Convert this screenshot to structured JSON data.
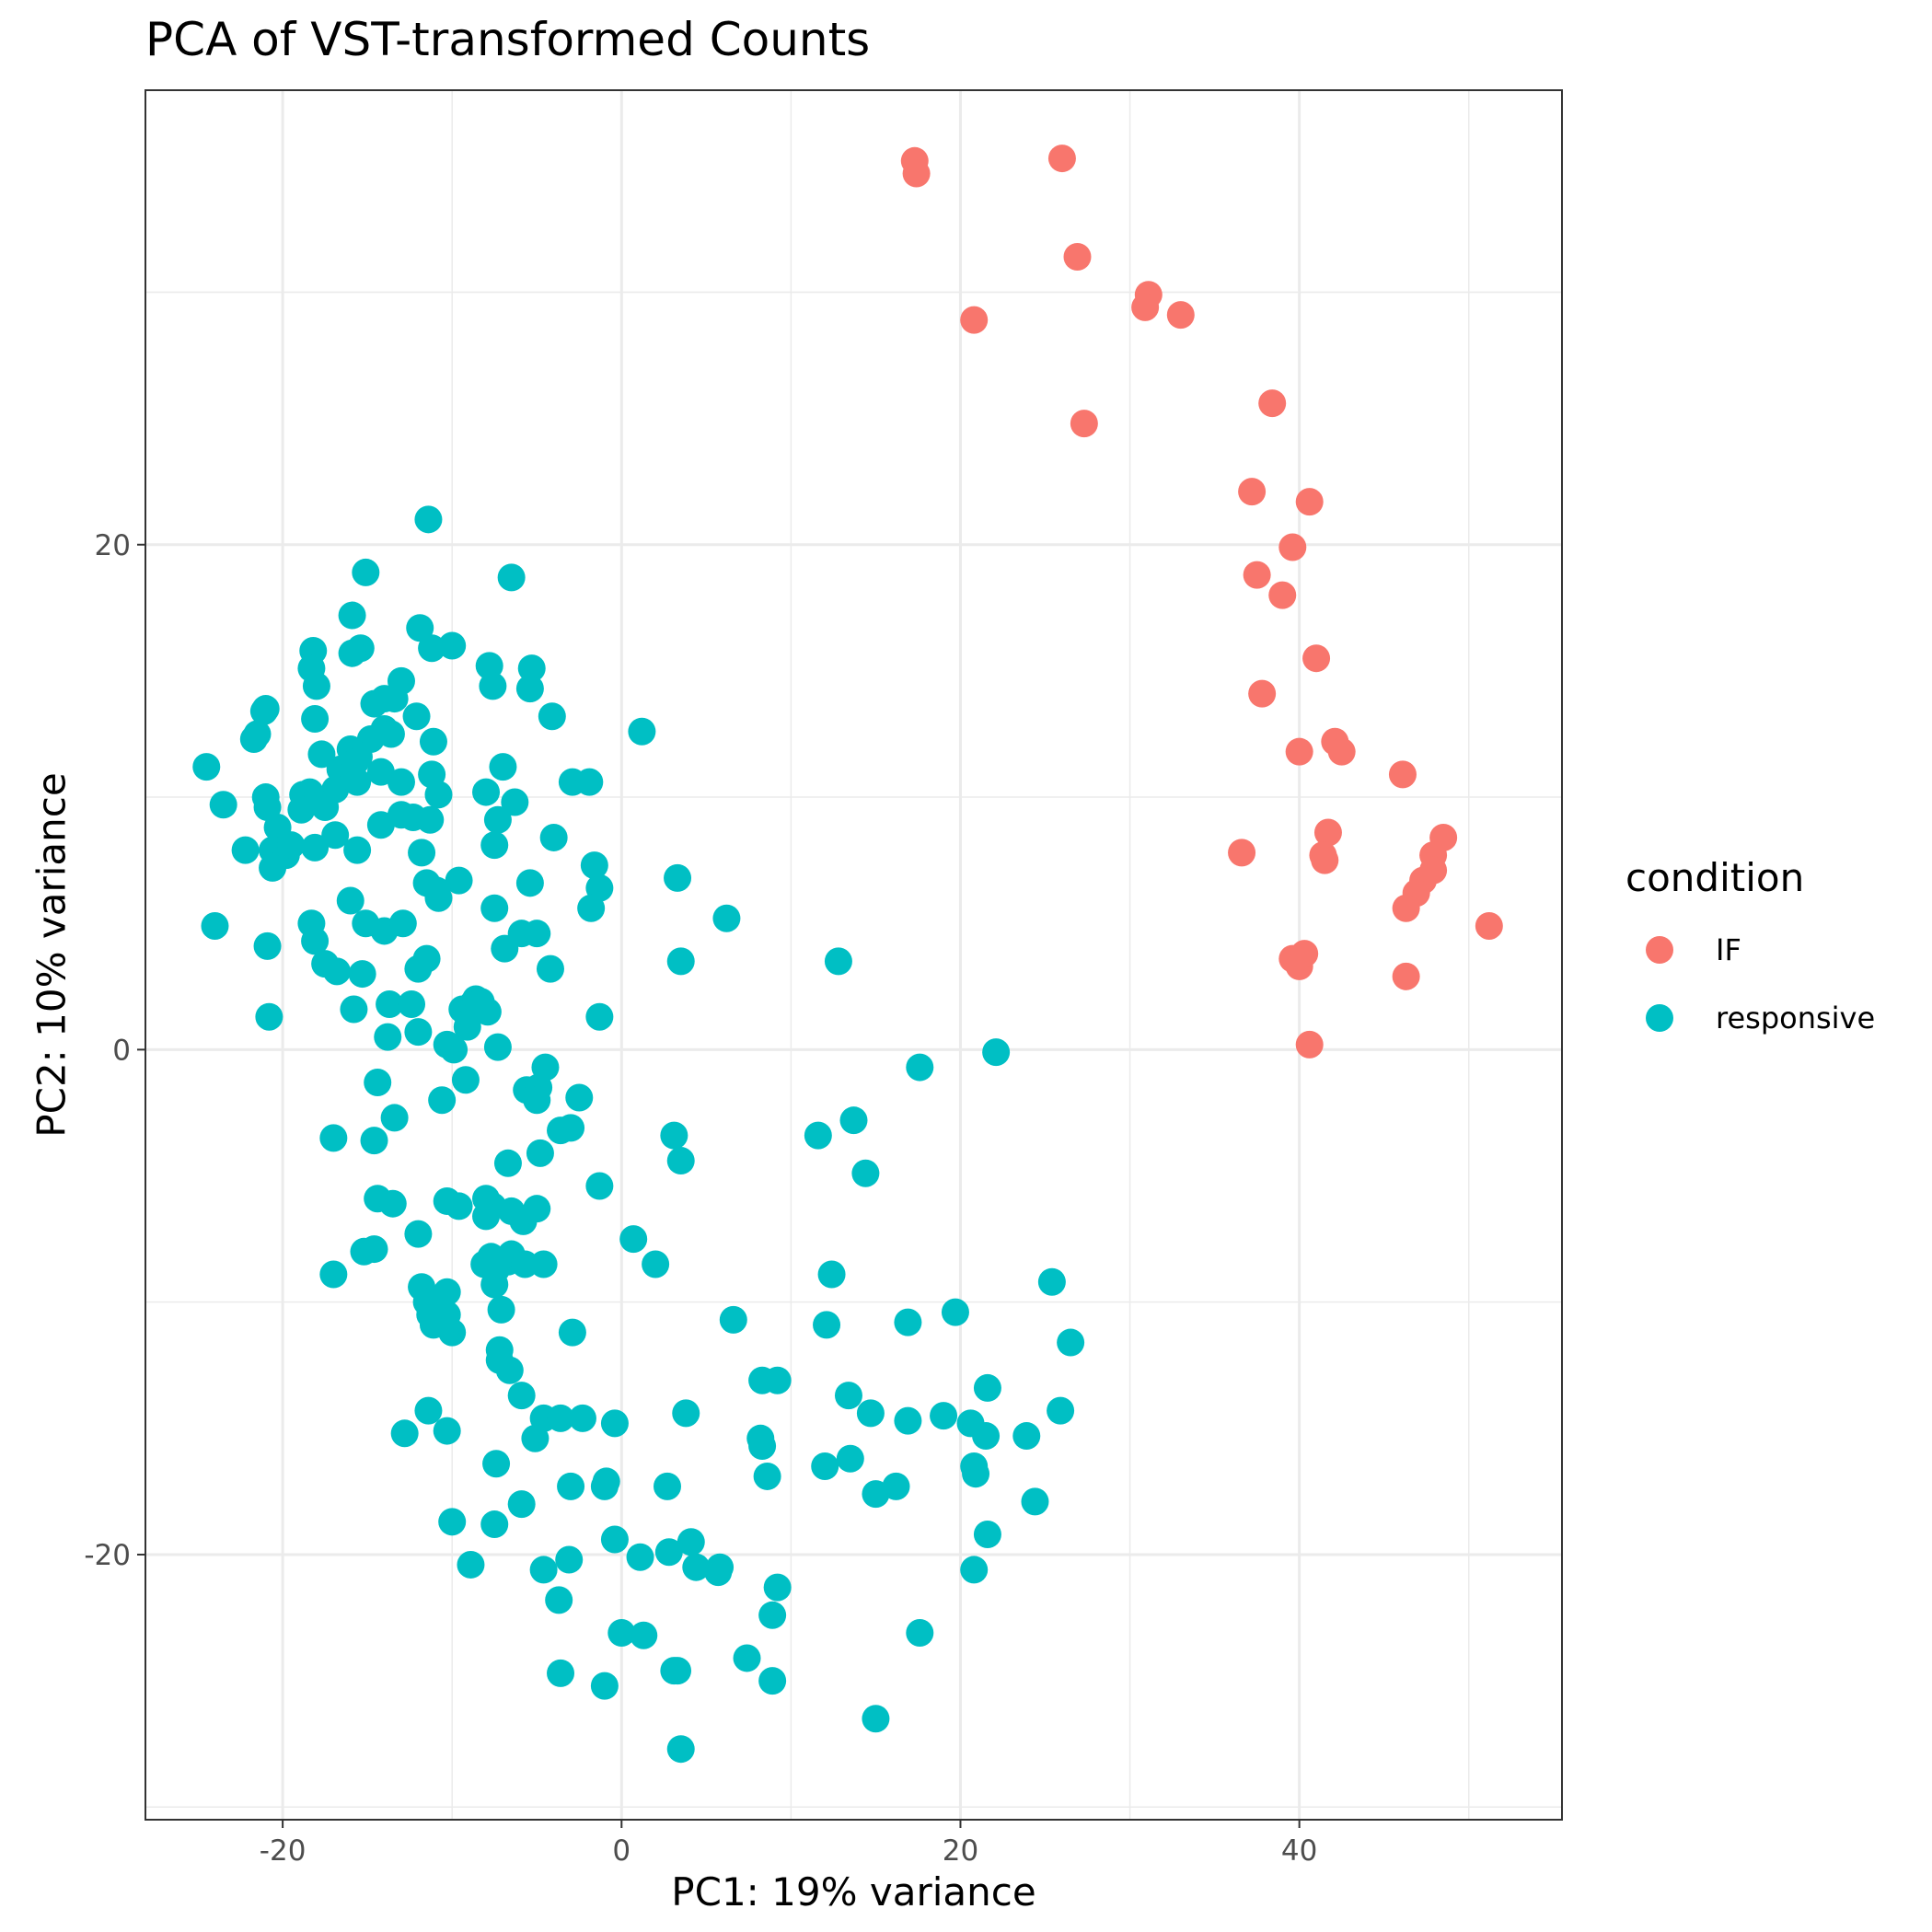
{
  "chart_data": {
    "type": "scatter",
    "title": "PCA of VST-transformed Counts",
    "xlabel": "PC1: 19% variance",
    "ylabel": "PC2: 10% variance",
    "xlim": [
      -28.1,
      55.5
    ],
    "ylim": [
      -30.5,
      38.0
    ],
    "xticks": [
      -20,
      0,
      20,
      40
    ],
    "yticks": [
      -20,
      0,
      20
    ],
    "xtick_labels": [
      "-20",
      "0",
      "20",
      "40"
    ],
    "ytick_labels": [
      "-20",
      "0",
      "20"
    ],
    "grid": true,
    "legend": {
      "title": "condition",
      "position": "right"
    },
    "series": [
      {
        "name": "IF",
        "color": "#F8766D",
        "points": [
          [
            17.3,
            35.2
          ],
          [
            17.4,
            34.7
          ],
          [
            26.0,
            35.3
          ],
          [
            26.9,
            31.4
          ],
          [
            20.8,
            28.9
          ],
          [
            31.1,
            29.9
          ],
          [
            30.9,
            29.4
          ],
          [
            33.0,
            29.1
          ],
          [
            38.4,
            25.6
          ],
          [
            27.3,
            24.8
          ],
          [
            37.2,
            22.1
          ],
          [
            40.6,
            21.7
          ],
          [
            39.6,
            19.9
          ],
          [
            37.5,
            18.8
          ],
          [
            39.0,
            18.0
          ],
          [
            41.0,
            15.5
          ],
          [
            37.8,
            14.1
          ],
          [
            42.1,
            12.2
          ],
          [
            40.0,
            11.8
          ],
          [
            42.5,
            11.8
          ],
          [
            46.1,
            10.9
          ],
          [
            41.7,
            8.6
          ],
          [
            36.6,
            7.8
          ],
          [
            41.4,
            7.7
          ],
          [
            41.5,
            7.5
          ],
          [
            48.5,
            8.4
          ],
          [
            47.9,
            7.7
          ],
          [
            47.9,
            7.1
          ],
          [
            47.3,
            6.7
          ],
          [
            46.9,
            6.2
          ],
          [
            46.3,
            5.6
          ],
          [
            51.2,
            4.9
          ],
          [
            39.6,
            3.6
          ],
          [
            40.0,
            3.3
          ],
          [
            40.3,
            3.8
          ],
          [
            46.3,
            2.9
          ],
          [
            40.6,
            0.2
          ]
        ]
      },
      {
        "name": "responsive",
        "color": "#00BFC4",
        "points": [
          [
            -11.4,
            21.0
          ],
          [
            -15.1,
            18.9
          ],
          [
            -6.5,
            18.7
          ],
          [
            -15.9,
            17.2
          ],
          [
            -11.9,
            16.7
          ],
          [
            -18.2,
            15.8
          ],
          [
            -15.4,
            15.9
          ],
          [
            -15.9,
            15.7
          ],
          [
            -11.2,
            15.9
          ],
          [
            -10.0,
            16.0
          ],
          [
            -18.3,
            15.1
          ],
          [
            -7.8,
            15.2
          ],
          [
            -5.3,
            15.1
          ],
          [
            -18.0,
            14.4
          ],
          [
            -7.6,
            14.4
          ],
          [
            -5.4,
            14.3
          ],
          [
            -13.0,
            14.6
          ],
          [
            -14.0,
            13.9
          ],
          [
            -13.4,
            13.9
          ],
          [
            -14.6,
            13.7
          ],
          [
            -21.1,
            13.4
          ],
          [
            -21.0,
            13.5
          ],
          [
            -18.1,
            13.1
          ],
          [
            -12.1,
            13.2
          ],
          [
            -4.1,
            13.2
          ],
          [
            1.2,
            12.6
          ],
          [
            -21.5,
            12.5
          ],
          [
            -21.7,
            12.3
          ],
          [
            -14.0,
            12.7
          ],
          [
            -14.8,
            12.3
          ],
          [
            -13.6,
            12.5
          ],
          [
            -11.1,
            12.2
          ],
          [
            -17.7,
            11.7
          ],
          [
            -15.5,
            11.6
          ],
          [
            -16.0,
            11.9
          ],
          [
            -16.6,
            11.1
          ],
          [
            -15.7,
            11.4
          ],
          [
            -24.5,
            11.2
          ],
          [
            -14.2,
            11.0
          ],
          [
            -11.2,
            10.9
          ],
          [
            -7.0,
            11.2
          ],
          [
            -16.9,
            10.3
          ],
          [
            -15.6,
            10.6
          ],
          [
            -13.0,
            10.6
          ],
          [
            -21.0,
            10.0
          ],
          [
            -18.8,
            10.1
          ],
          [
            -18.4,
            10.2
          ],
          [
            -10.8,
            10.1
          ],
          [
            -8.0,
            10.2
          ],
          [
            -2.9,
            10.6
          ],
          [
            -1.9,
            10.6
          ],
          [
            -23.5,
            9.7
          ],
          [
            -18.9,
            9.5
          ],
          [
            -17.5,
            9.6
          ],
          [
            -20.9,
            9.6
          ],
          [
            -13.0,
            9.3
          ],
          [
            -12.3,
            9.2
          ],
          [
            -11.3,
            9.1
          ],
          [
            -7.3,
            9.1
          ],
          [
            -6.3,
            9.8
          ],
          [
            -20.3,
            8.8
          ],
          [
            -16.9,
            8.5
          ],
          [
            -14.2,
            8.9
          ],
          [
            -4.0,
            8.4
          ],
          [
            -22.2,
            7.9
          ],
          [
            -20.6,
            7.9
          ],
          [
            -19.8,
            7.7
          ],
          [
            -19.5,
            8.1
          ],
          [
            -18.1,
            8.0
          ],
          [
            -15.6,
            7.9
          ],
          [
            -11.8,
            7.8
          ],
          [
            -7.5,
            8.1
          ],
          [
            -20.6,
            7.2
          ],
          [
            -1.6,
            7.3
          ],
          [
            -11.5,
            6.6
          ],
          [
            -9.6,
            6.7
          ],
          [
            -10.9,
            6.3
          ],
          [
            -10.8,
            6.0
          ],
          [
            -5.4,
            6.6
          ],
          [
            -1.3,
            6.4
          ],
          [
            3.3,
            6.8
          ],
          [
            -16.0,
            5.9
          ],
          [
            -7.5,
            5.6
          ],
          [
            -1.8,
            5.6
          ],
          [
            6.2,
            5.2
          ],
          [
            -24.0,
            4.9
          ],
          [
            -18.3,
            5.0
          ],
          [
            -15.1,
            5.0
          ],
          [
            -18.1,
            4.3
          ],
          [
            -14.0,
            4.7
          ],
          [
            -12.9,
            5.0
          ],
          [
            -5.9,
            4.6
          ],
          [
            -5.0,
            4.6
          ],
          [
            -6.9,
            4.0
          ],
          [
            -20.9,
            4.1
          ],
          [
            -17.5,
            3.4
          ],
          [
            -16.8,
            3.1
          ],
          [
            -15.3,
            3.0
          ],
          [
            -11.5,
            3.6
          ],
          [
            -12.0,
            3.2
          ],
          [
            -4.2,
            3.2
          ],
          [
            3.5,
            3.5
          ],
          [
            12.8,
            3.5
          ],
          [
            -13.7,
            1.8
          ],
          [
            -12.4,
            1.8
          ],
          [
            -9.4,
            1.6
          ],
          [
            -8.8,
            1.8
          ],
          [
            -8.6,
            2.0
          ],
          [
            -8.3,
            1.9
          ],
          [
            -7.9,
            1.5
          ],
          [
            -9.1,
            0.9
          ],
          [
            -15.8,
            1.6
          ],
          [
            -20.8,
            1.3
          ],
          [
            -1.3,
            1.3
          ],
          [
            -13.8,
            0.5
          ],
          [
            -12.0,
            0.7
          ],
          [
            -10.3,
            0.2
          ],
          [
            -9.9,
            0.0
          ],
          [
            -7.3,
            0.1
          ],
          [
            -4.5,
            -0.7
          ],
          [
            17.6,
            -0.7
          ],
          [
            22.1,
            -0.1
          ],
          [
            -14.4,
            -1.3
          ],
          [
            -9.2,
            -1.2
          ],
          [
            -5.6,
            -1.6
          ],
          [
            -4.9,
            -1.5
          ],
          [
            -5.0,
            -2.0
          ],
          [
            -10.6,
            -2.0
          ],
          [
            -2.5,
            -1.9
          ],
          [
            -13.4,
            -2.7
          ],
          [
            -3.6,
            -3.2
          ],
          [
            -3.0,
            -3.1
          ],
          [
            13.7,
            -2.8
          ],
          [
            -17.0,
            -3.5
          ],
          [
            -14.6,
            -3.6
          ],
          [
            3.1,
            -3.4
          ],
          [
            11.6,
            -3.4
          ],
          [
            -4.8,
            -4.1
          ],
          [
            -6.7,
            -4.5
          ],
          [
            3.5,
            -4.4
          ],
          [
            14.4,
            -4.9
          ],
          [
            -1.3,
            -5.4
          ],
          [
            -14.4,
            -5.9
          ],
          [
            -13.5,
            -6.1
          ],
          [
            -10.3,
            -6.0
          ],
          [
            -9.6,
            -6.2
          ],
          [
            -8.0,
            -5.9
          ],
          [
            -7.6,
            -6.2
          ],
          [
            -6.5,
            -6.4
          ],
          [
            -5.8,
            -6.8
          ],
          [
            -5.0,
            -6.3
          ],
          [
            -8.0,
            -6.6
          ],
          [
            -12.0,
            -7.3
          ],
          [
            0.7,
            -7.5
          ],
          [
            -15.2,
            -8.0
          ],
          [
            -14.6,
            -7.9
          ],
          [
            -6.5,
            -8.1
          ],
          [
            -7.7,
            -8.2
          ],
          [
            -6.7,
            -8.4
          ],
          [
            -5.7,
            -8.5
          ],
          [
            -4.6,
            -8.5
          ],
          [
            -8.1,
            -8.5
          ],
          [
            -7.4,
            -8.7
          ],
          [
            2.0,
            -8.5
          ],
          [
            -17.0,
            -8.9
          ],
          [
            12.4,
            -8.9
          ],
          [
            -7.5,
            -9.3
          ],
          [
            -11.8,
            -9.4
          ],
          [
            -10.3,
            -9.6
          ],
          [
            25.4,
            -9.2
          ],
          [
            -11.5,
            -10.0
          ],
          [
            -11.3,
            -10.5
          ],
          [
            -10.3,
            -10.5
          ],
          [
            -7.1,
            -10.3
          ],
          [
            6.6,
            -10.7
          ],
          [
            12.1,
            -10.9
          ],
          [
            16.9,
            -10.8
          ],
          [
            19.7,
            -10.4
          ],
          [
            -11.1,
            -10.9
          ],
          [
            -10.0,
            -11.2
          ],
          [
            -2.9,
            -11.2
          ],
          [
            26.5,
            -11.6
          ],
          [
            -7.2,
            -11.9
          ],
          [
            -7.2,
            -12.3
          ],
          [
            -6.6,
            -12.7
          ],
          [
            8.3,
            -13.1
          ],
          [
            9.2,
            -13.1
          ],
          [
            21.6,
            -13.4
          ],
          [
            -5.9,
            -13.7
          ],
          [
            13.4,
            -13.7
          ],
          [
            -11.4,
            -14.3
          ],
          [
            -4.6,
            -14.6
          ],
          [
            -3.6,
            -14.6
          ],
          [
            -2.3,
            -14.6
          ],
          [
            -0.4,
            -14.8
          ],
          [
            3.8,
            -14.4
          ],
          [
            14.7,
            -14.4
          ],
          [
            16.9,
            -14.7
          ],
          [
            19.0,
            -14.5
          ],
          [
            20.6,
            -14.8
          ],
          [
            25.9,
            -14.3
          ],
          [
            -12.8,
            -15.2
          ],
          [
            -10.3,
            -15.1
          ],
          [
            -5.1,
            -15.4
          ],
          [
            8.2,
            -15.4
          ],
          [
            8.3,
            -15.7
          ],
          [
            21.5,
            -15.3
          ],
          [
            23.9,
            -15.3
          ],
          [
            -7.4,
            -16.4
          ],
          [
            12.0,
            -16.5
          ],
          [
            13.5,
            -16.2
          ],
          [
            20.8,
            -16.5
          ],
          [
            -3.0,
            -17.3
          ],
          [
            -1.0,
            -17.3
          ],
          [
            -0.9,
            -17.1
          ],
          [
            2.7,
            -17.3
          ],
          [
            8.6,
            -16.9
          ],
          [
            16.2,
            -17.3
          ],
          [
            15.0,
            -17.6
          ],
          [
            20.9,
            -16.8
          ],
          [
            24.4,
            -17.9
          ],
          [
            -5.9,
            -18.0
          ],
          [
            -10.0,
            -18.7
          ],
          [
            -7.5,
            -18.8
          ],
          [
            -0.4,
            -19.4
          ],
          [
            4.1,
            -19.5
          ],
          [
            21.6,
            -19.2
          ],
          [
            -8.9,
            -20.4
          ],
          [
            -3.1,
            -20.2
          ],
          [
            1.1,
            -20.1
          ],
          [
            2.8,
            -19.9
          ],
          [
            4.4,
            -20.5
          ],
          [
            5.8,
            -20.5
          ],
          [
            5.7,
            -20.7
          ],
          [
            -4.6,
            -20.6
          ],
          [
            20.8,
            -20.6
          ],
          [
            -3.7,
            -21.8
          ],
          [
            9.2,
            -21.3
          ],
          [
            8.9,
            -22.4
          ],
          [
            0.0,
            -23.1
          ],
          [
            1.3,
            -23.2
          ],
          [
            17.6,
            -23.1
          ],
          [
            7.4,
            -24.1
          ],
          [
            -3.6,
            -24.7
          ],
          [
            3.1,
            -24.6
          ],
          [
            3.3,
            -24.6
          ],
          [
            8.9,
            -25.0
          ],
          [
            -1.0,
            -25.2
          ],
          [
            15.0,
            -26.5
          ],
          [
            3.5,
            -27.7
          ]
        ]
      }
    ]
  }
}
